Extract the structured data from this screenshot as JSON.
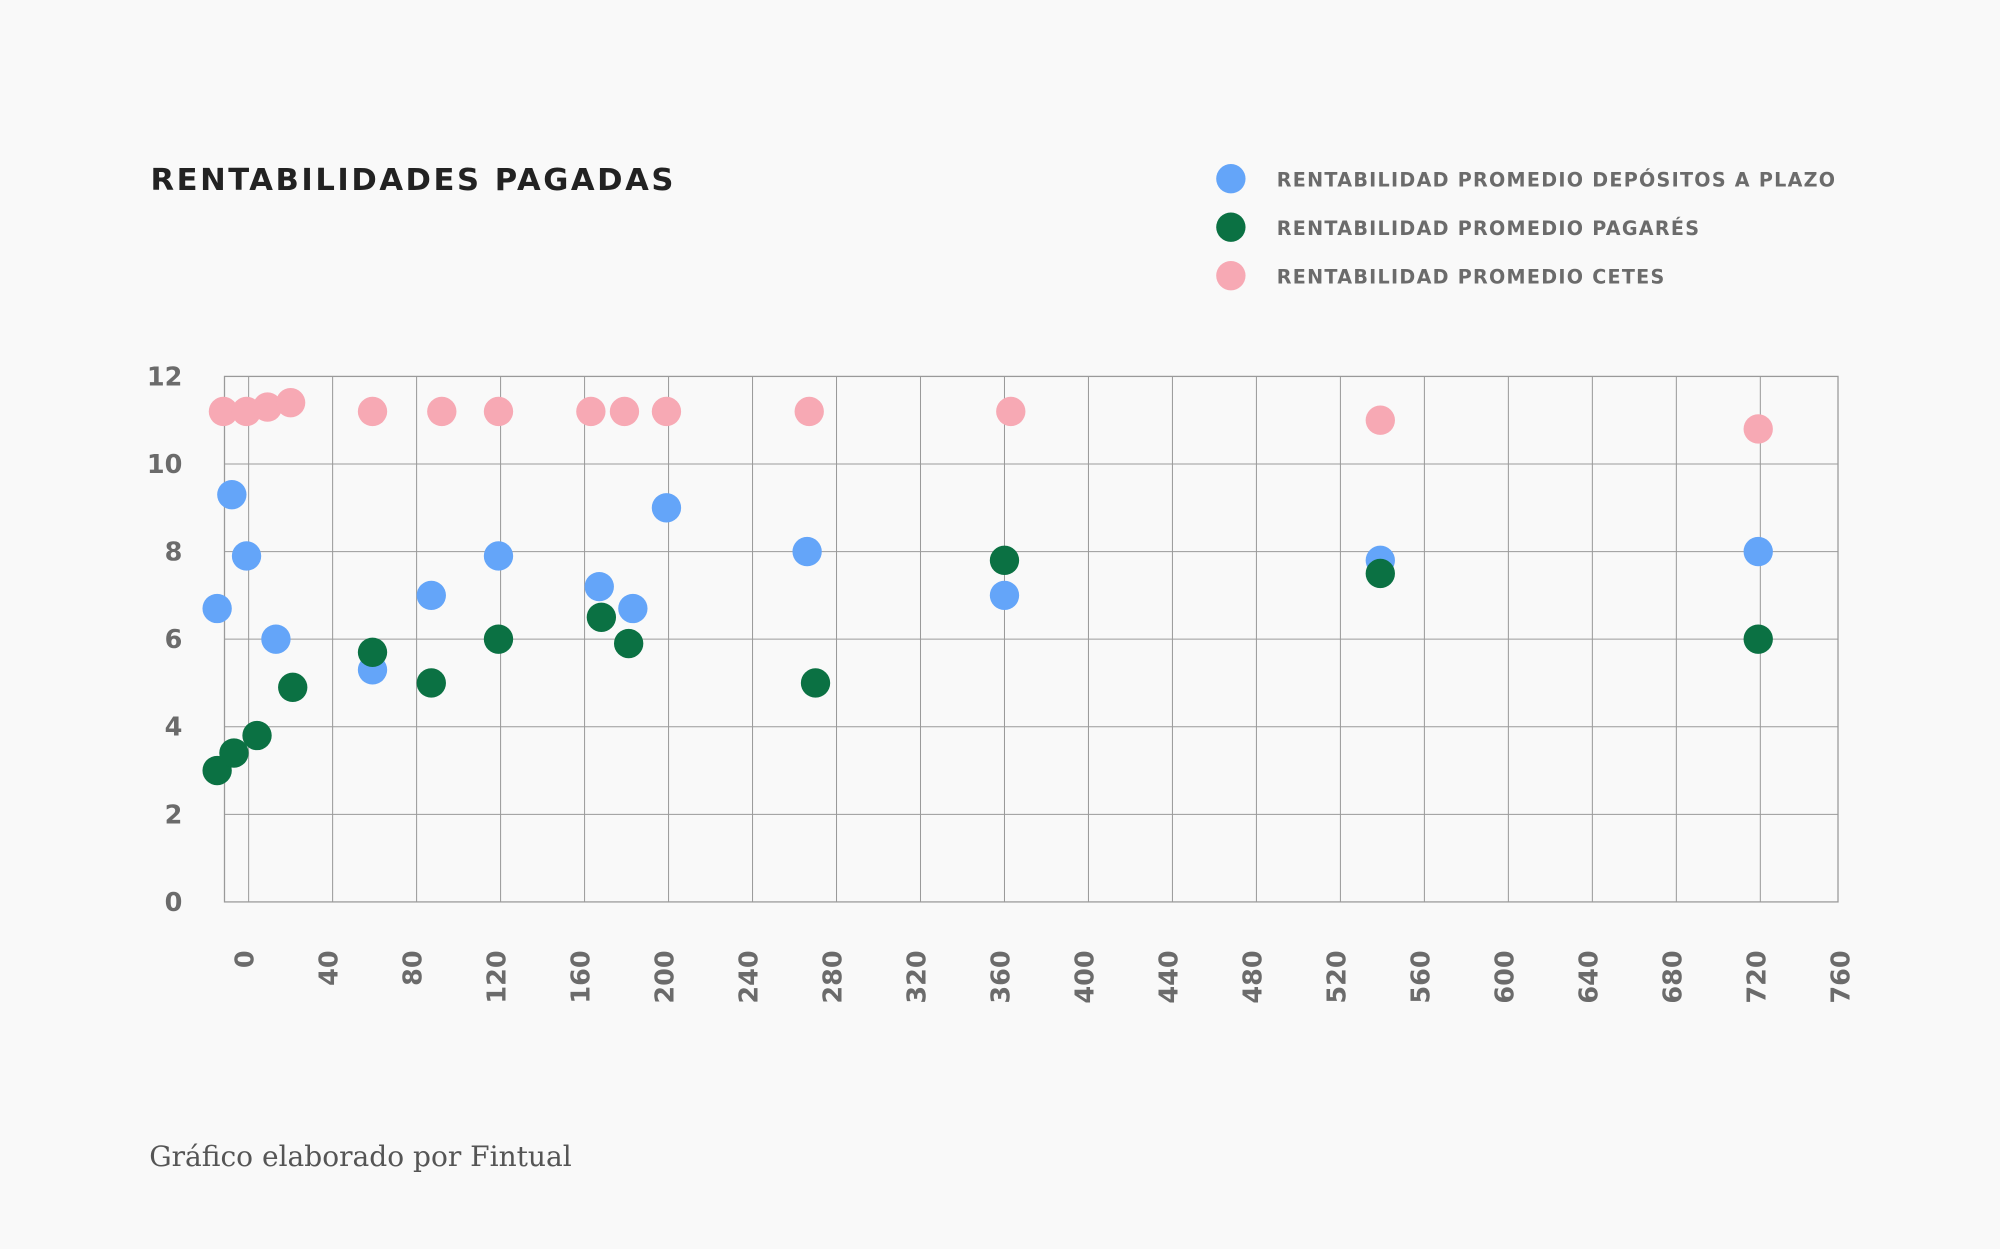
{
  "chart_data": {
    "type": "scatter",
    "title": "RENTABILIDADES PAGADAS",
    "xlabel": "",
    "ylabel": "",
    "xlim": [
      -11.5,
      757
    ],
    "ylim": [
      0,
      12
    ],
    "xticks": [
      0,
      40,
      80,
      120,
      160,
      200,
      240,
      280,
      320,
      360,
      400,
      440,
      480,
      520,
      560,
      600,
      640,
      680,
      720,
      760
    ],
    "yticks": [
      0,
      2,
      4,
      6,
      8,
      10,
      12
    ],
    "grid": true,
    "legend_position": "top-right",
    "series": [
      {
        "name": "RENTABILIDAD PROMEDIO DEPÓSITOS A PLAZO",
        "color": "#64a5f9",
        "x": [
          -15,
          -8,
          -1,
          13,
          59,
          87,
          119,
          167,
          183,
          199,
          266,
          360,
          539,
          719
        ],
        "y": [
          6.7,
          9.3,
          7.9,
          6.0,
          5.3,
          7.0,
          7.9,
          7.2,
          6.7,
          9.0,
          8.0,
          7.0,
          7.8,
          8.0
        ]
      },
      {
        "name": "RENTABILIDAD PROMEDIO PAGARÉS",
        "color": "#0b7143",
        "x": [
          -15,
          -7,
          4,
          21,
          59,
          87,
          119,
          168,
          181,
          270,
          360,
          539,
          719
        ],
        "y": [
          3.0,
          3.4,
          3.8,
          4.9,
          5.7,
          5.0,
          6.0,
          6.5,
          5.9,
          5.0,
          7.8,
          7.5,
          6.0
        ]
      },
      {
        "name": "RENTABILIDAD PROMEDIO CETES",
        "color": "#f7a9b4",
        "x": [
          -12,
          -1,
          9,
          20,
          59,
          92,
          119,
          163,
          179,
          199,
          267,
          363,
          539,
          719
        ],
        "y": [
          11.2,
          11.2,
          11.3,
          11.4,
          11.2,
          11.2,
          11.2,
          11.2,
          11.2,
          11.2,
          11.2,
          11.2,
          11.0,
          10.8
        ]
      }
    ]
  },
  "footer": "Gráfico elaborado por Fintual",
  "colors": {
    "background": "#f9f9f9",
    "grid": "#9a9a9a"
  }
}
